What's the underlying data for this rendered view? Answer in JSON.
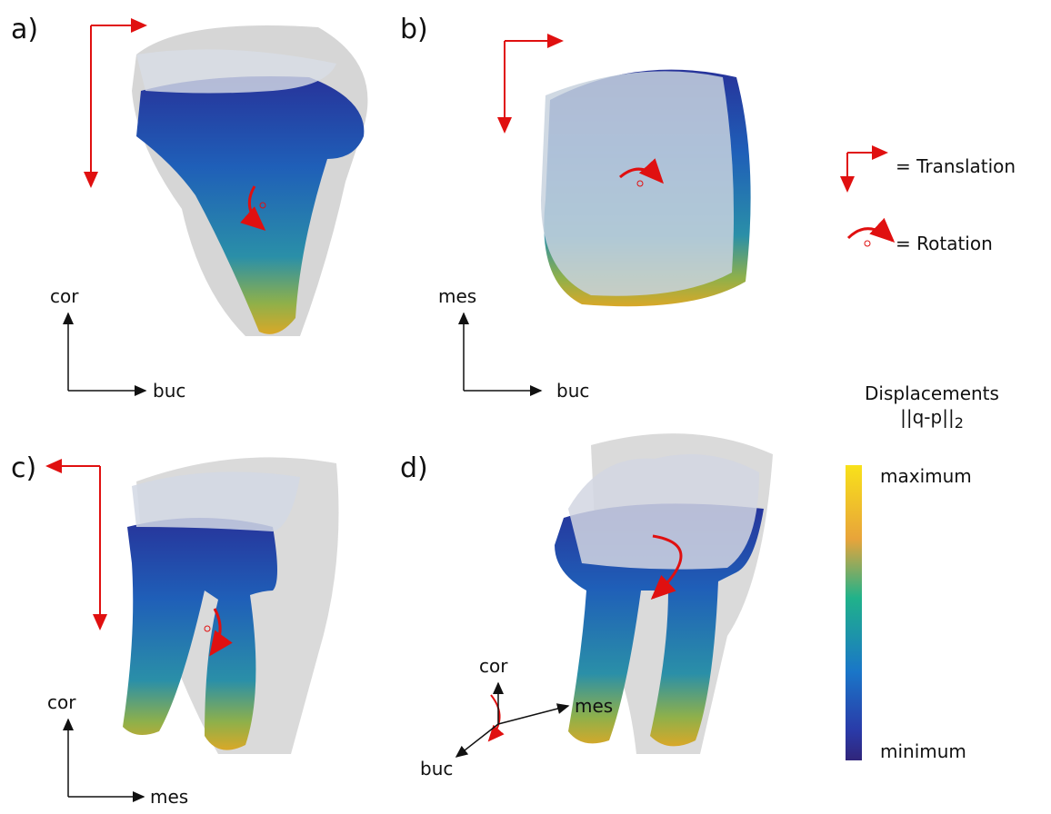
{
  "panels": [
    {
      "label": "a)",
      "axes": [
        "cor",
        "buc"
      ]
    },
    {
      "label": "b)",
      "axes": [
        "mes",
        "buc"
      ]
    },
    {
      "label": "c)",
      "axes": [
        "cor",
        "mes"
      ]
    },
    {
      "label": "d)",
      "axes": [
        "cor",
        "mes",
        "buc"
      ]
    }
  ],
  "legend": {
    "translation": "= Translation",
    "rotation": "= Rotation"
  },
  "colorbar": {
    "title": "Displacements",
    "formula": "||q-p||",
    "subscript": "2",
    "max_label": "maximum",
    "min_label": "minimum"
  }
}
